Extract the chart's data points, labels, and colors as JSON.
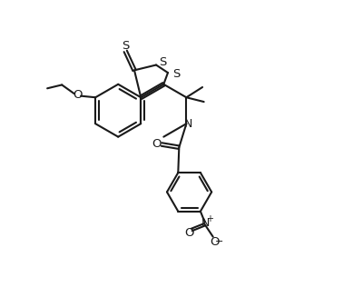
{
  "background_color": "#ffffff",
  "line_color": "#1a1a1a",
  "line_width": 1.5,
  "figsize": [
    3.89,
    3.27
  ],
  "dpi": 100,
  "xlim": [
    0,
    10
  ],
  "ylim": [
    0,
    10
  ]
}
